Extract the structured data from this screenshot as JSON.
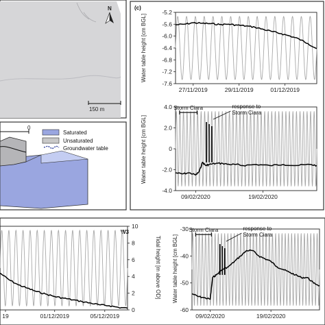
{
  "map": {
    "north_label": "N",
    "scale_label": "150 m"
  },
  "diagram": {
    "marker_0": "0",
    "legend": [
      {
        "label": "Saturated",
        "color": "#9aa6e0"
      },
      {
        "label": "Unsaturated",
        "color": "#c8c8c8"
      },
      {
        "label": "Groundwater table",
        "color": "#2b3c9a"
      }
    ]
  },
  "panel_c_label": "(c)",
  "panel_w3_label": "W3",
  "chart_data": [
    {
      "id": "c-top",
      "type": "line",
      "ylabel": "Water table height [cm BGL]",
      "ylim": [
        -7.6,
        -5.2
      ],
      "yticks": [
        "-5.2",
        "-5.6",
        "-6.0",
        "-6.4",
        "-6.8",
        "-7.2",
        "-7.6"
      ],
      "xlim": [
        0,
        8
      ],
      "xticks": [
        {
          "x": 1,
          "label": "27/11/2019"
        },
        {
          "x": 3.6,
          "label": "29/11/2019"
        },
        {
          "x": 6.2,
          "label": "01/12/2019"
        }
      ],
      "series": [
        {
          "role": "water-table",
          "color": "#000000",
          "x": [
            0,
            0.5,
            1,
            1.5,
            2,
            2.5,
            3,
            3.5,
            4,
            4.5,
            5,
            5.5,
            6,
            6.5,
            7,
            7.5,
            8
          ],
          "y": [
            -5.62,
            -5.6,
            -5.55,
            -5.57,
            -5.58,
            -5.61,
            -5.6,
            -5.63,
            -5.66,
            -5.7,
            -5.78,
            -5.85,
            -5.92,
            -6.0,
            -6.1,
            -6.25,
            -6.42
          ]
        },
        {
          "role": "tide",
          "color": "#a8a8a8",
          "amplitude": 1,
          "cycles": 16
        }
      ]
    },
    {
      "id": "c-bottom",
      "type": "line",
      "ylabel": "Water table height [cm BGL]",
      "ylim": [
        -4.0,
        4.0
      ],
      "yticks": [
        "4.0",
        "2.0",
        "0",
        "-2.0",
        "-4.0"
      ],
      "xlim": [
        0,
        21
      ],
      "xticks": [
        {
          "x": 3,
          "label": "09/02/2020"
        },
        {
          "x": 13,
          "label": "19/02/2020"
        }
      ],
      "annotations": [
        "Storm Ciara",
        "response to",
        "Storm Ciara"
      ],
      "series": [
        {
          "role": "water-table",
          "color": "#000000",
          "x": [
            0,
            1,
            2,
            3,
            3.5,
            4,
            4.5,
            5,
            6,
            7,
            8,
            9,
            10,
            12,
            14,
            16,
            18,
            20,
            21
          ],
          "y": [
            -2.3,
            -2.4,
            -2.3,
            -2.5,
            -2.2,
            -1.3,
            -1.6,
            -1.5,
            -1.4,
            -1.4,
            -1.5,
            -1.5,
            -1.6,
            -1.5,
            -1.6,
            -1.5,
            -1.6,
            -1.5,
            -1.6
          ]
        },
        {
          "role": "tide",
          "color": "#a8a8a8",
          "amplitude": 1,
          "cycles": 40
        }
      ]
    },
    {
      "id": "w3-left",
      "type": "line",
      "y2label": "Tidal height [m above OD]",
      "y2lim": [
        0,
        10
      ],
      "y2ticks": [
        "10",
        "8",
        "6",
        "4",
        "2",
        "0"
      ],
      "xlim": [
        0,
        14
      ],
      "xticks": [
        {
          "x": 0.6,
          "label": "19"
        },
        {
          "x": 6,
          "label": "01/12/2019"
        },
        {
          "x": 11.5,
          "label": "05/12/2019"
        }
      ],
      "series": [
        {
          "role": "water-table",
          "color": "#000000",
          "x": [
            0,
            1,
            2,
            3,
            4,
            5,
            6,
            7,
            8,
            9,
            10,
            11,
            12,
            13,
            14
          ],
          "y": [
            4.4,
            3.6,
            3.0,
            2.6,
            2.2,
            1.9,
            1.6,
            1.4,
            1.2,
            1.0,
            0.8,
            0.6,
            0.5,
            0.3,
            0.2
          ]
        },
        {
          "role": "tide",
          "color": "#a8a8a8",
          "amplitude": 1,
          "cycles": 18
        }
      ]
    },
    {
      "id": "w3-right",
      "type": "line",
      "ylabel": "Water table height [cm BGL]",
      "ylim": [
        -60,
        -30
      ],
      "yticks": [
        "-30",
        "-40",
        "-50",
        "-60"
      ],
      "xlim": [
        0,
        21
      ],
      "xticks": [
        {
          "x": 3,
          "label": "09/02/2020"
        },
        {
          "x": 13,
          "label": "19/02/2020"
        }
      ],
      "annotations": [
        "Storm Ciara",
        "response to",
        "Storm Ciara"
      ],
      "series": [
        {
          "role": "water-table",
          "color": "#000000",
          "x": [
            0,
            1,
            2,
            3,
            3.4,
            4,
            5,
            6,
            7,
            8,
            9,
            10,
            11,
            12,
            13,
            14,
            15,
            16,
            17,
            18,
            19,
            20,
            21
          ],
          "y": [
            -54,
            -55,
            -55.5,
            -56,
            -48,
            -47,
            -45,
            -44,
            -42,
            -40,
            -38,
            -38,
            -40,
            -41,
            -42,
            -44,
            -45,
            -46,
            -47,
            -48,
            -48,
            -50,
            -51
          ]
        },
        {
          "role": "tide",
          "color": "#a8a8a8",
          "amplitude": 1,
          "cycles": 40
        }
      ]
    }
  ]
}
